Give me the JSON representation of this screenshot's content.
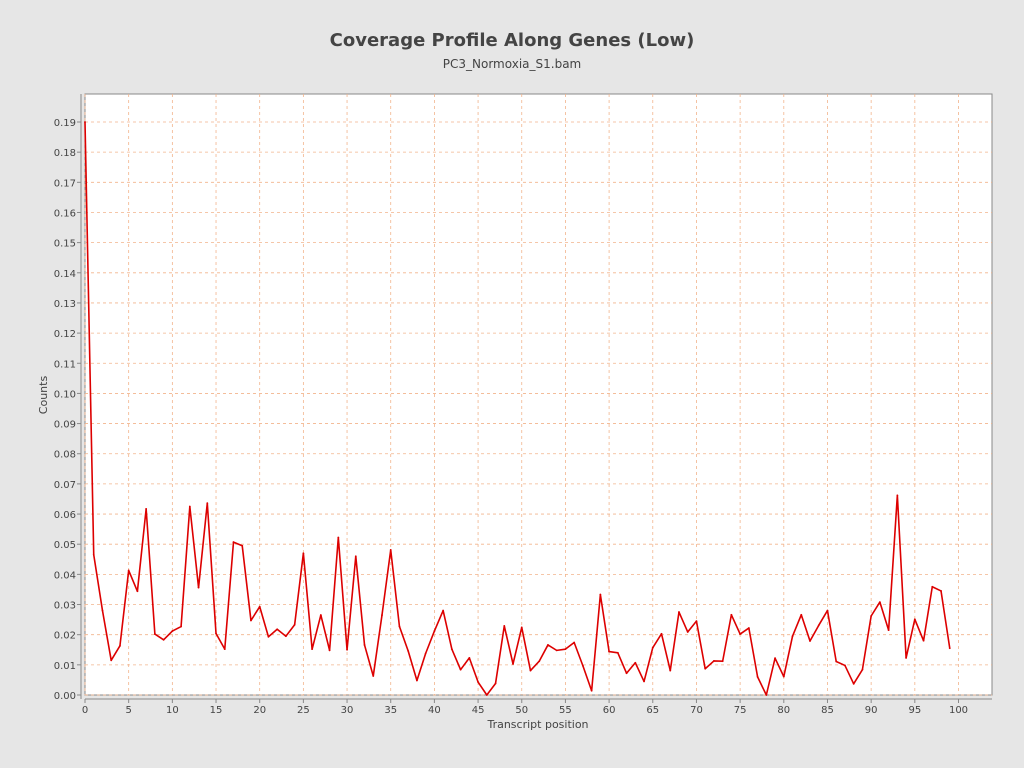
{
  "chart_data": {
    "type": "line",
    "title": "Coverage Profile Along Genes (Low)",
    "subtitle": "PC3_Normoxia_S1.bam",
    "xlabel": "Transcript position",
    "ylabel": "Counts",
    "xlim": [
      0,
      104
    ],
    "ylim": [
      0,
      0.19
    ],
    "xticks": [
      0,
      5,
      10,
      15,
      20,
      25,
      30,
      35,
      40,
      45,
      50,
      55,
      60,
      65,
      70,
      75,
      80,
      85,
      90,
      95,
      100
    ],
    "yticks": [
      "0.00",
      "0.01",
      "0.02",
      "0.03",
      "0.04",
      "0.05",
      "0.06",
      "0.07",
      "0.08",
      "0.09",
      "0.10",
      "0.11",
      "0.12",
      "0.13",
      "0.14",
      "0.15",
      "0.16",
      "0.17",
      "0.18",
      "0.19"
    ],
    "grid": true,
    "line_color": "#dd0000",
    "grid_color": "#f2b48c",
    "series": [
      {
        "x": [
          0,
          1,
          2,
          3,
          4,
          5,
          6,
          7,
          8,
          9,
          10,
          11,
          12,
          13,
          14,
          15,
          16,
          17,
          18,
          19,
          20,
          21,
          22,
          23,
          24,
          25,
          26,
          27,
          28,
          29,
          30,
          31,
          32,
          33,
          34,
          35,
          36,
          37,
          38,
          39,
          40,
          41,
          42,
          43,
          44,
          45,
          46,
          47,
          48,
          49,
          50,
          51,
          52,
          53,
          54,
          55,
          56,
          57,
          58,
          59,
          60,
          61,
          62,
          63,
          64,
          65,
          66,
          67,
          68,
          69,
          70,
          71,
          72,
          73,
          74,
          75,
          76,
          77,
          78,
          79,
          80,
          81,
          82,
          83,
          84,
          85,
          86,
          87,
          88,
          89,
          90,
          91,
          92,
          93,
          94,
          95,
          96,
          97,
          98,
          99
        ],
        "values": [
          0.19,
          0.0465,
          0.028,
          0.0115,
          0.0163,
          0.0413,
          0.0344,
          0.0617,
          0.0202,
          0.0183,
          0.0212,
          0.0227,
          0.0625,
          0.0356,
          0.0636,
          0.0204,
          0.0152,
          0.0507,
          0.0495,
          0.0247,
          0.0293,
          0.0193,
          0.0218,
          0.0195,
          0.0233,
          0.047,
          0.0152,
          0.0265,
          0.0148,
          0.0522,
          0.015,
          0.046,
          0.0166,
          0.0063,
          0.0265,
          0.0481,
          0.0227,
          0.0146,
          0.0048,
          0.0138,
          0.0212,
          0.028,
          0.0152,
          0.0084,
          0.0123,
          0.0043,
          0.0,
          0.0038,
          0.0229,
          0.0103,
          0.0224,
          0.0081,
          0.0112,
          0.0166,
          0.0148,
          0.0152,
          0.0174,
          0.0097,
          0.0014,
          0.0333,
          0.0144,
          0.014,
          0.0072,
          0.0107,
          0.0045,
          0.0157,
          0.0203,
          0.0081,
          0.0275,
          0.0209,
          0.0245,
          0.0087,
          0.0113,
          0.0112,
          0.0266,
          0.0202,
          0.0222,
          0.006,
          0.0,
          0.0122,
          0.0061,
          0.0195,
          0.0266,
          0.0179,
          0.0231,
          0.028,
          0.0111,
          0.0098,
          0.0037,
          0.0084,
          0.0262,
          0.0308,
          0.0215,
          0.0662,
          0.0123,
          0.0251,
          0.018,
          0.0359,
          0.0345,
          0.0155
        ]
      }
    ]
  }
}
